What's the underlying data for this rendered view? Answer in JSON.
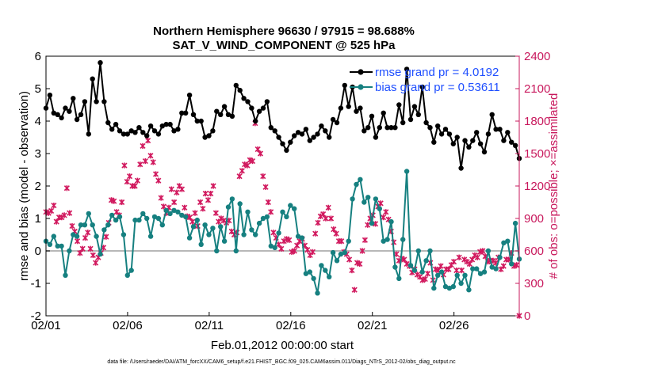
{
  "chart_data": {
    "type": "line",
    "title": "Northern Hemisphere 96630 / 97915 = 98.688%",
    "subtitle": "SAT_V_WIND_COMPONENT @ 525 hPa",
    "xlabel": "Feb.01,2012 00:00:00 start",
    "ylabel": "rmse and bias (model - observation)",
    "ylabel_right": "# of obs: o=possible; ×=assimilated",
    "ylim": [
      -2,
      6
    ],
    "ylim_right": [
      0,
      2400
    ],
    "xlim": [
      0,
      29
    ],
    "x_ticks": [
      0,
      5,
      10,
      15,
      20,
      25
    ],
    "x_tick_labels": [
      "02/01",
      "02/06",
      "02/11",
      "02/16",
      "02/21",
      "02/26"
    ],
    "y_ticks": [
      -2,
      -1,
      0,
      1,
      2,
      3,
      4,
      5,
      6
    ],
    "y_ticks_right": [
      0,
      300,
      600,
      900,
      1200,
      1500,
      1800,
      2100,
      2400
    ],
    "grid": false,
    "legend_position": "top-right",
    "footnote": "data file: /Users/raeder/DAI/ATM_forcXX/CAM6_setup/f.e21.FHIST_BGC.f09_025.CAM6assim.011/Diags_NTrS_2012-02/obs_diag_output.nc",
    "colors": {
      "rmse": "#000000",
      "bias": "#168080",
      "obs": "#d1195e",
      "zero": "#b8b8b8",
      "legend_text": "#1f4fff",
      "right_axis": "#c8185c"
    },
    "series": [
      {
        "name": "rmse grand pr = 4.0192",
        "values": [
          4.4,
          4.8,
          4.25,
          4.2,
          4.1,
          4.4,
          4.3,
          4.7,
          4.05,
          4.2,
          4.6,
          3.6,
          5.3,
          4.6,
          5.8,
          4.6,
          3.95,
          3.75,
          3.9,
          3.7,
          3.6,
          3.6,
          3.7,
          3.65,
          3.8,
          3.65,
          3.55,
          3.85,
          3.7,
          3.6,
          3.85,
          3.9,
          3.9,
          3.7,
          3.75,
          4.25,
          4.25,
          4.8,
          4.2,
          4.0,
          4.0,
          3.5,
          3.55,
          3.7,
          4.3,
          4.2,
          4.45,
          4.2,
          4.15,
          5.1,
          4.95,
          4.7,
          4.6,
          4.4,
          4.0,
          4.3,
          4.4,
          4.6,
          3.8,
          3.7,
          3.5,
          3.3,
          3.1,
          3.35,
          3.55,
          3.65,
          3.6,
          3.75,
          3.4,
          3.5,
          3.6,
          3.85,
          3.7,
          3.5,
          4.05,
          3.95,
          4.4,
          5.1,
          4.45,
          5.05,
          4.3,
          4.4,
          3.7,
          3.8,
          4.15,
          3.5,
          3.8,
          4.25,
          3.8,
          3.8,
          3.8,
          4.5,
          3.95,
          5.6,
          4.05,
          4.45,
          4.2,
          5.05,
          3.95,
          3.8,
          3.35,
          3.85,
          3.6,
          3.75,
          3.6,
          3.3,
          3.5,
          2.55,
          3.4,
          3.2,
          3.4,
          3.65,
          3.3,
          3.05,
          3.6,
          4.2,
          3.75,
          3.75,
          3.4,
          3.65,
          3.35,
          3.25,
          2.85
        ],
        "color": "#000000"
      },
      {
        "name": "bias grand pr = 0.53611",
        "values": [
          0.3,
          0.2,
          0.45,
          0.15,
          0.15,
          -0.75,
          0.0,
          0.5,
          0.45,
          0.8,
          0.8,
          1.15,
          0.8,
          0.45,
          -0.1,
          0.65,
          0.8,
          1.1,
          0.95,
          1.05,
          0.5,
          -0.75,
          -0.6,
          0.95,
          0.95,
          1.15,
          1.0,
          0.45,
          1.05,
          1.0,
          0.8,
          1.25,
          1.15,
          1.25,
          1.2,
          1.1,
          1.05,
          0.4,
          0.75,
          0.95,
          0.2,
          0.8,
          0.5,
          0.7,
          0.0,
          0.75,
          0.3,
          1.35,
          1.6,
          0.0,
          1.45,
          0.5,
          1.2,
          0.65,
          0.5,
          0.85,
          1.0,
          1.05,
          0.15,
          0.1,
          0.55,
          1.2,
          1.05,
          1.4,
          1.3,
          0.45,
          0.4,
          -0.7,
          -0.65,
          -0.85,
          -1.3,
          -0.45,
          -0.6,
          -0.8,
          -0.05,
          -0.3,
          -0.1,
          -0.05,
          0.3,
          1.6,
          2.05,
          2.2,
          1.5,
          1.65,
          0.85,
          1.6,
          1.3,
          0.3,
          0.35,
          0.9,
          -0.5,
          -0.85,
          0.35,
          2.45,
          -0.45,
          -0.6,
          0.0,
          -0.65,
          -0.3,
          0.0,
          -1.15,
          -0.75,
          -0.65,
          -1.1,
          -1.15,
          -1.1,
          -0.75,
          -1.0,
          -0.75,
          -1.2,
          -0.55,
          -0.55,
          -0.7,
          -0.65,
          0.0,
          -0.5,
          -0.55,
          -0.2,
          0.25,
          0.3,
          -0.4,
          0.85,
          -0.25
        ],
        "color": "#168080"
      }
    ],
    "obs_assimilated": [
      960,
      950,
      970,
      1020,
      870,
      910,
      910,
      930,
      1180,
      950,
      830,
      780,
      690,
      580,
      620,
      720,
      770,
      620,
      560,
      490,
      540,
      580,
      630,
      730,
      860,
      1070,
      1060,
      960,
      930,
      1050,
      1390,
      1240,
      1290,
      1200,
      1200,
      1250,
      1400,
      1570,
      1430,
      1620,
      1480,
      1420,
      1310,
      1250,
      1090,
      1010,
      950,
      1000,
      1170,
      1050,
      1140,
      1200,
      1170,
      1000,
      920,
      910,
      870,
      950,
      830,
      1050,
      990,
      1130,
      1070,
      1130,
      1200,
      950,
      870,
      900,
      880,
      860,
      880,
      780,
      750,
      770,
      1290,
      1340,
      1400,
      1390,
      1440,
      1430,
      1780,
      1540,
      1500,
      1290,
      1190,
      1050,
      960,
      770,
      720,
      660,
      620,
      690,
      710,
      700,
      590,
      600,
      650,
      690,
      710,
      650,
      610,
      560,
      590,
      760,
      860,
      920,
      940,
      900,
      1000,
      900,
      800,
      760,
      690,
      690,
      590,
      570,
      520,
      420,
      240,
      490,
      480,
      600,
      700,
      840,
      900,
      930,
      850,
      1010,
      1040,
      910,
      960,
      890,
      780,
      680,
      570,
      510,
      530,
      520,
      480,
      460,
      400,
      430,
      380,
      360,
      330,
      340,
      390,
      490,
      330,
      430,
      420,
      460,
      380,
      430,
      430,
      470,
      500,
      420,
      540,
      420,
      520,
      500,
      480,
      520,
      560,
      540,
      590,
      600,
      550,
      500,
      510,
      510,
      490,
      540,
      430,
      460,
      520,
      520,
      580,
      460,
      470,
      0
    ]
  }
}
